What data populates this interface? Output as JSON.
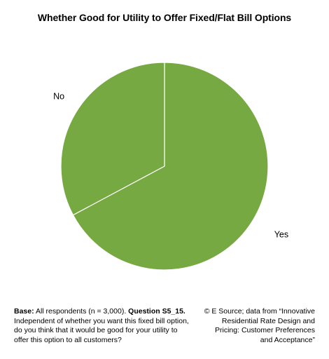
{
  "chart_data": {
    "type": "pie",
    "title": "Whether Good for Utility to Offer Fixed/Flat Bill Options",
    "slices": [
      {
        "label": "Yes",
        "value": 67.2,
        "color": "#77A942"
      },
      {
        "label": "No",
        "value": 32.8,
        "color": "#77A942"
      }
    ],
    "start_angle_deg": 0,
    "direction": "clockwise",
    "legend": "none"
  },
  "footnote": {
    "base_label": "Base:",
    "base_text": " All respondents (n = 3,000). ",
    "question_label": "Question S5_15.",
    "question_text": " Independent of whether you want this fixed bill option, do you think that it would be good for your utility to offer this option to all customers?"
  },
  "source": {
    "text": "© E Source; data from “Innovative Residential Rate Design and Pricing: Customer Preferences and Acceptance”"
  }
}
